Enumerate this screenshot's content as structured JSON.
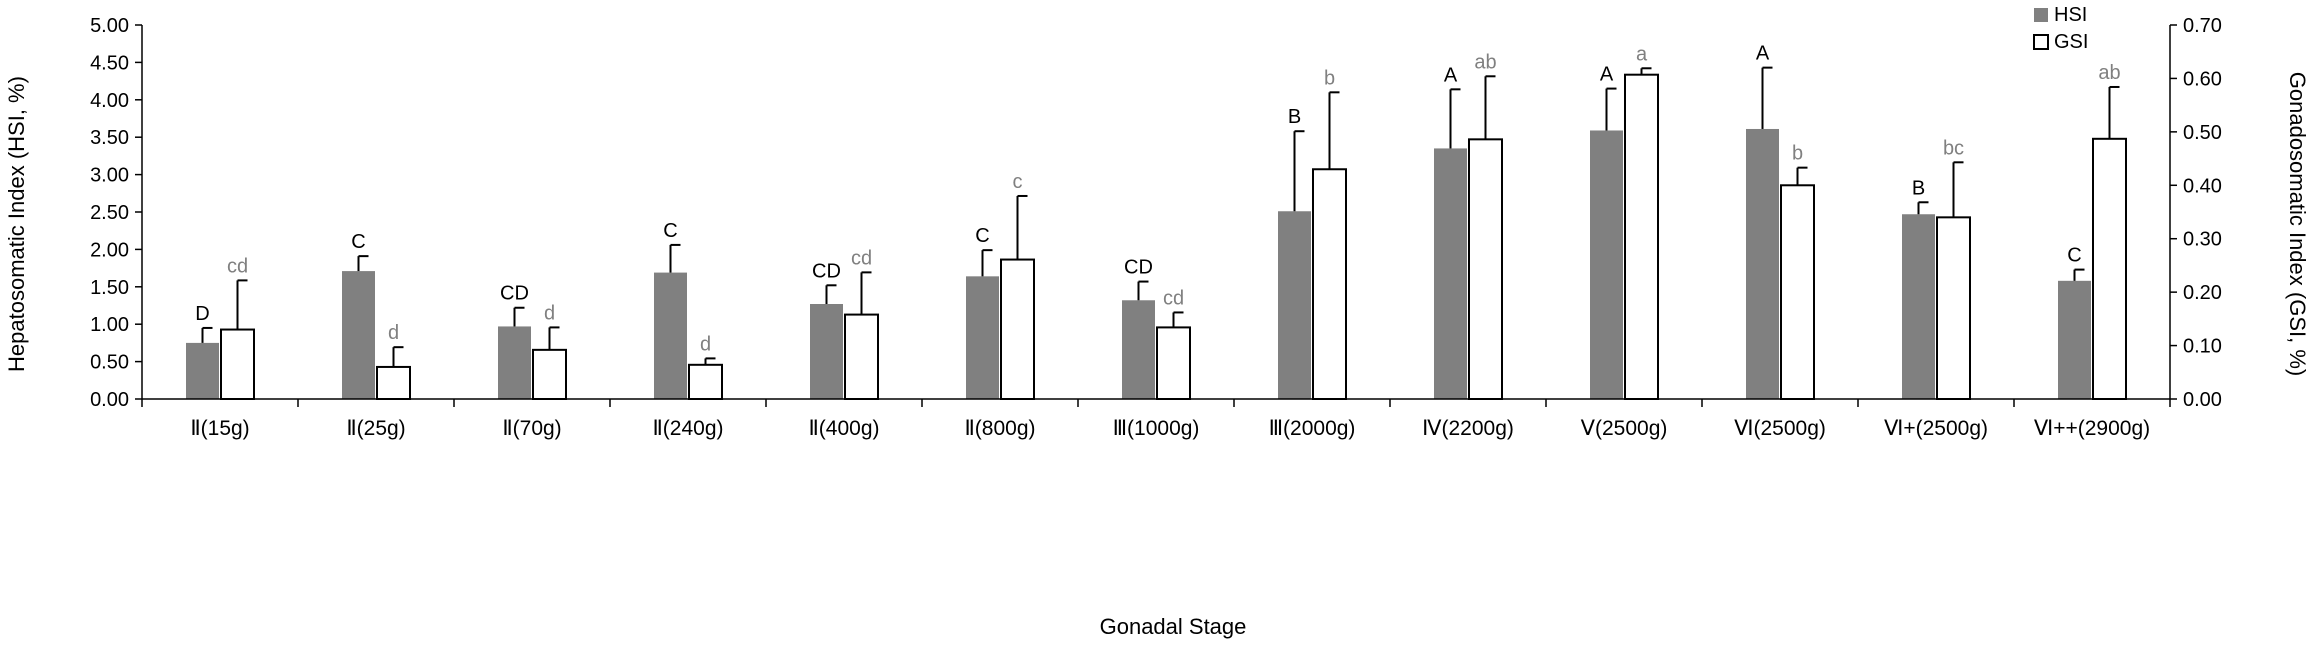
{
  "chart_data": {
    "type": "bar",
    "title": "",
    "xlabel": "Gonadal Stage",
    "ylabel_left": "Hepatosomatic Index (HSI, %)",
    "ylabel_right": "Gonadosomatic Index (GSI, %)",
    "ylim_left": [
      0,
      5
    ],
    "ylim_right": [
      0,
      0.7
    ],
    "yticks_left": [
      "0.00",
      "0.50",
      "1.00",
      "1.50",
      "2.00",
      "2.50",
      "3.00",
      "3.50",
      "4.00",
      "4.50",
      "5.00"
    ],
    "yticks_right": [
      "0.00",
      "0.10",
      "0.20",
      "0.30",
      "0.40",
      "0.50",
      "0.60",
      "0.70"
    ],
    "categories": [
      "Ⅱ(15g)",
      "Ⅱ(25g)",
      "Ⅱ(70g)",
      "Ⅱ(240g)",
      "Ⅱ(400g)",
      "Ⅱ(800g)",
      "Ⅲ(1000g)",
      "Ⅲ(2000g)",
      "Ⅳ(2200g)",
      "Ⅴ(2500g)",
      "Ⅵ(2500g)",
      "Ⅵ+(2500g)",
      "Ⅵ++(2900g)"
    ],
    "series": [
      {
        "name": "HSI",
        "axis": "left",
        "color": "#808080",
        "values": [
          0.75,
          1.71,
          0.97,
          1.69,
          1.27,
          1.64,
          1.32,
          2.51,
          3.35,
          3.59,
          3.61,
          2.47,
          1.58
        ],
        "errors": [
          0.2,
          0.2,
          0.25,
          0.37,
          0.25,
          0.35,
          0.25,
          1.07,
          0.79,
          0.56,
          0.82,
          0.16,
          0.15
        ],
        "labels": [
          "D",
          "C",
          "CD",
          "C",
          "CD",
          "C",
          "CD",
          "B",
          "A",
          "A",
          "A",
          "B",
          "C"
        ]
      },
      {
        "name": "GSI",
        "axis": "right",
        "color": "#ffffff",
        "values": [
          0.13,
          0.06,
          0.092,
          0.064,
          0.158,
          0.261,
          0.134,
          0.43,
          0.486,
          0.607,
          0.4,
          0.34,
          0.487
        ],
        "errors": [
          0.092,
          0.037,
          0.042,
          0.012,
          0.079,
          0.119,
          0.028,
          0.144,
          0.118,
          0.012,
          0.033,
          0.103,
          0.097
        ],
        "labels": [
          "cd",
          "d",
          "d",
          "d",
          "cd",
          "c",
          "cd",
          "b",
          "ab",
          "a",
          "b",
          "bc",
          "ab"
        ]
      }
    ],
    "legend": {
      "position": "top-right",
      "entries": [
        "HSI",
        "GSI"
      ]
    }
  }
}
